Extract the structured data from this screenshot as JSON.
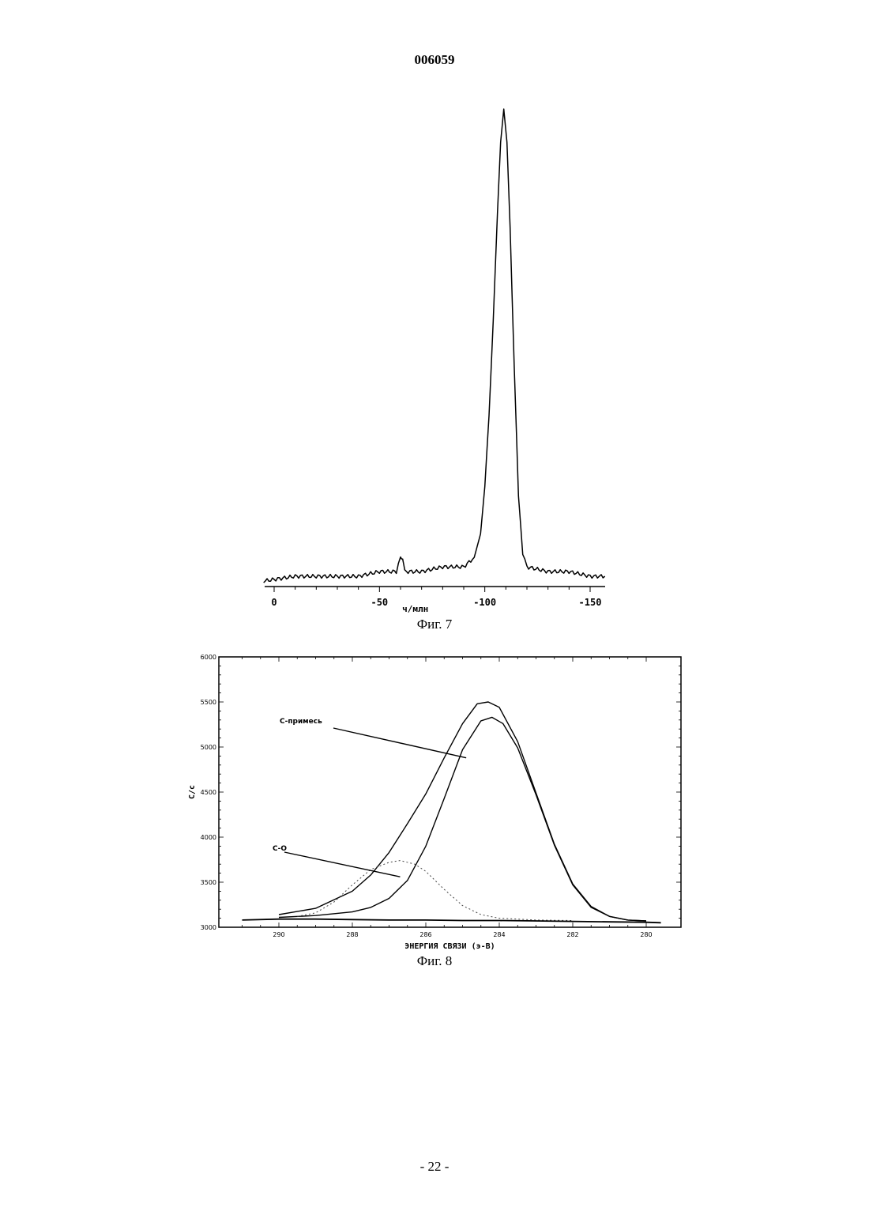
{
  "header": {
    "doc_number": "006059"
  },
  "figures": [
    {
      "caption": "Фиг. 7"
    },
    {
      "caption": "Фиг. 8"
    }
  ],
  "footer": {
    "page_number": "- 22 -"
  },
  "chart_data": [
    {
      "type": "line",
      "title": "",
      "xlabel": "ч/млн",
      "ylabel": "",
      "xlim": [
        5,
        -157
      ],
      "x_ticks": [
        0,
        -50,
        -100,
        -150
      ],
      "x_tick_labels": [
        "0",
        "-50",
        "-100",
        "-150"
      ],
      "y_axis": "none",
      "grid": false,
      "series": [
        {
          "values": [
            [
              5,
              0.0
            ],
            [
              -10,
              0.01
            ],
            [
              -20,
              0.01
            ],
            [
              -30,
              0.01
            ],
            [
              -40,
              0.01
            ],
            [
              -50,
              0.02
            ],
            [
              -58,
              0.02
            ],
            [
              -60,
              0.05
            ],
            [
              -61,
              0.05
            ],
            [
              -62,
              0.02
            ],
            [
              -70,
              0.02
            ],
            [
              -80,
              0.03
            ],
            [
              -90,
              0.03
            ],
            [
              -95,
              0.05
            ],
            [
              -98,
              0.1
            ],
            [
              -100,
              0.2
            ],
            [
              -102,
              0.35
            ],
            [
              -104,
              0.55
            ],
            [
              -106,
              0.78
            ],
            [
              -107.5,
              0.93
            ],
            [
              -109,
              1.0
            ],
            [
              -110.5,
              0.93
            ],
            [
              -112,
              0.75
            ],
            [
              -114,
              0.45
            ],
            [
              -116,
              0.18
            ],
            [
              -118,
              0.06
            ],
            [
              -120,
              0.03
            ],
            [
              -130,
              0.02
            ],
            [
              -140,
              0.02
            ],
            [
              -150,
              0.01
            ],
            [
              -157,
              0.01
            ]
          ]
        }
      ]
    },
    {
      "type": "line",
      "title": "",
      "xlabel": "ЭНЕРГИЯ СВЯЗИ (э-В)",
      "ylabel": "С/с",
      "xlim": [
        291.4,
        279.5
      ],
      "ylim": [
        3000,
        6000
      ],
      "x_ticks": [
        290,
        288,
        286,
        284,
        282,
        280
      ],
      "x_tick_labels": [
        "290",
        "288",
        "286",
        "284",
        "282",
        "280"
      ],
      "y_ticks": [
        3000,
        3500,
        4000,
        4500,
        5000,
        5500,
        6000
      ],
      "y_tick_labels": [
        "3000",
        "3500",
        "4000",
        "4500",
        "5000",
        "5500",
        "6000"
      ],
      "grid": false,
      "annotations": [
        {
          "text": "С-примесь",
          "target_x": 284.9,
          "target_y": 4880
        },
        {
          "text": "С-О",
          "target_x": 286.7,
          "target_y": 3560
        }
      ],
      "series": [
        {
          "style": "solid",
          "values": [
            [
              290.0,
              3140
            ],
            [
              289.0,
              3210
            ],
            [
              288.0,
              3400
            ],
            [
              287.5,
              3580
            ],
            [
              287.0,
              3830
            ],
            [
              286.5,
              4150
            ],
            [
              286.0,
              4480
            ],
            [
              285.5,
              4880
            ],
            [
              285.0,
              5260
            ],
            [
              284.6,
              5480
            ],
            [
              284.3,
              5500
            ],
            [
              284.0,
              5440
            ],
            [
              283.5,
              5060
            ],
            [
              283.0,
              4490
            ],
            [
              282.5,
              3920
            ],
            [
              282.0,
              3480
            ],
            [
              281.5,
              3230
            ],
            [
              281.0,
              3120
            ],
            [
              280.5,
              3080
            ],
            [
              280.0,
              3070
            ]
          ]
        },
        {
          "style": "solid",
          "values": [
            [
              290.0,
              3110
            ],
            [
              289.0,
              3130
            ],
            [
              288.0,
              3170
            ],
            [
              287.5,
              3220
            ],
            [
              287.0,
              3320
            ],
            [
              286.5,
              3520
            ],
            [
              286.0,
              3900
            ],
            [
              285.5,
              4430
            ],
            [
              285.0,
              4970
            ],
            [
              284.5,
              5290
            ],
            [
              284.2,
              5330
            ],
            [
              283.9,
              5260
            ],
            [
              283.5,
              4990
            ],
            [
              283.0,
              4470
            ],
            [
              282.5,
              3910
            ],
            [
              282.0,
              3470
            ],
            [
              281.5,
              3220
            ],
            [
              281.0,
              3120
            ],
            [
              280.5,
              3080
            ],
            [
              280.0,
              3070
            ]
          ]
        },
        {
          "style": "dashed",
          "values": [
            [
              289.5,
              3120
            ],
            [
              289.0,
              3160
            ],
            [
              288.5,
              3280
            ],
            [
              288.0,
              3470
            ],
            [
              287.5,
              3640
            ],
            [
              287.0,
              3720
            ],
            [
              286.7,
              3740
            ],
            [
              286.3,
              3700
            ],
            [
              286.0,
              3620
            ],
            [
              285.5,
              3420
            ],
            [
              285.0,
              3240
            ],
            [
              284.5,
              3140
            ],
            [
              284.0,
              3100
            ],
            [
              283.0,
              3080
            ],
            [
              282.0,
              3075
            ]
          ]
        },
        {
          "style": "solid",
          "values": [
            [
              291.0,
              3080
            ],
            [
              290.0,
              3090
            ],
            [
              289.0,
              3090
            ],
            [
              288.0,
              3085
            ],
            [
              287.0,
              3080
            ],
            [
              286.0,
              3080
            ],
            [
              285.0,
              3075
            ],
            [
              284.0,
              3075
            ],
            [
              283.0,
              3070
            ],
            [
              282.0,
              3065
            ],
            [
              281.0,
              3060
            ],
            [
              280.0,
              3055
            ],
            [
              279.6,
              3050
            ]
          ]
        }
      ]
    }
  ]
}
